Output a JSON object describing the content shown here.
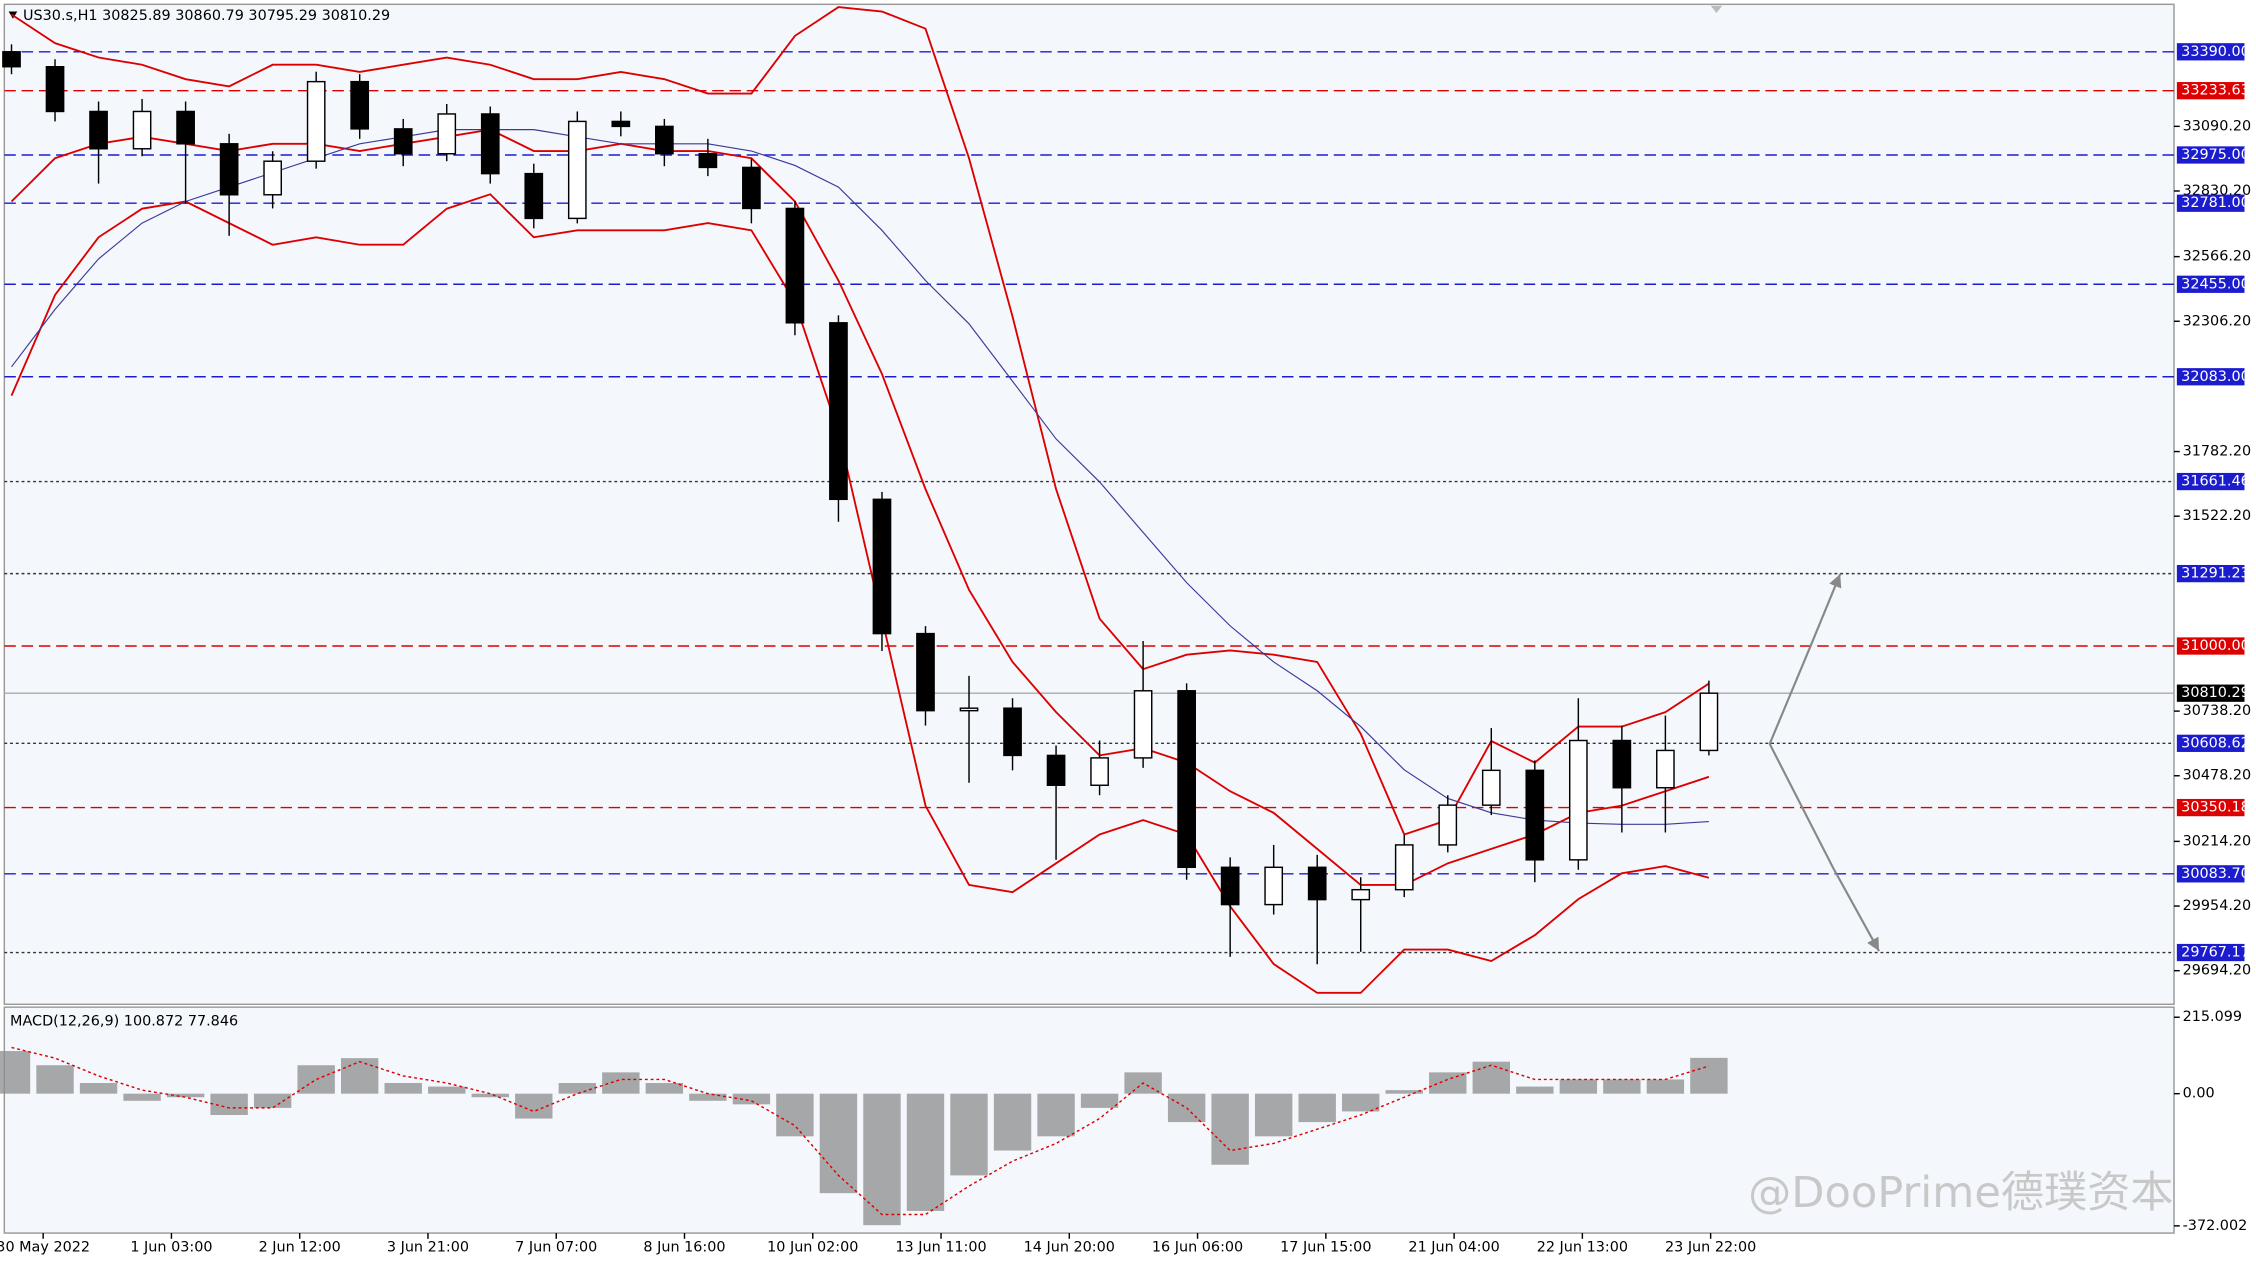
{
  "chart_data": [
    {
      "type": "candlestick",
      "title": "US30.s,H1  30825.89 30860.79 30795.29 30810.29",
      "watermark": "@DooPrime德璞资本",
      "ylim": [
        29559,
        33581
      ],
      "yticks": [
        {
          "value": 33090.2,
          "label": "33090.20"
        },
        {
          "value": 32830.2,
          "label": "32830.20"
        },
        {
          "value": 32566.2,
          "label": "32566.20"
        },
        {
          "value": 32306.2,
          "label": "32306.20"
        },
        {
          "value": 31782.2,
          "label": "31782.20"
        },
        {
          "value": 31522.2,
          "label": "31522.20"
        },
        {
          "value": 30738.2,
          "label": "30738.20"
        },
        {
          "value": 30478.2,
          "label": "30478.20"
        },
        {
          "value": 30214.2,
          "label": "30214.20"
        },
        {
          "value": 29954.2,
          "label": "29954.20"
        },
        {
          "value": 29694.2,
          "label": "29694.20"
        }
      ],
      "open": [
        33390,
        33330,
        33150,
        33000,
        33150,
        33020,
        32815,
        32950,
        33270,
        33080,
        32980,
        33140,
        32900,
        32720,
        33110,
        33090,
        32980,
        32925,
        32760,
        32300,
        31590,
        31050,
        30740,
        30750,
        30560,
        30440,
        30550,
        30820,
        30110,
        29960,
        30110,
        29980,
        30020,
        30200,
        30360,
        30500,
        30140,
        30620,
        30430,
        30580
      ],
      "high": [
        33420,
        33360,
        33190,
        33200,
        33190,
        33060,
        32990,
        33310,
        33300,
        33120,
        33180,
        33170,
        32940,
        33150,
        33150,
        33120,
        33040,
        32960,
        32790,
        32330,
        31620,
        31080,
        30880,
        30790,
        30600,
        30620,
        31020,
        30850,
        30150,
        30200,
        30160,
        30070,
        30240,
        30400,
        30670,
        30540,
        30790,
        30680,
        30720,
        30860.79
      ],
      "low": [
        33300,
        33110,
        32860,
        32970,
        32780,
        32650,
        32760,
        32920,
        33040,
        32930,
        32950,
        32860,
        32680,
        32700,
        33050,
        32930,
        32890,
        32700,
        32250,
        31500,
        30980,
        30680,
        30450,
        30500,
        30140,
        30400,
        30510,
        30060,
        29750,
        29920,
        29720,
        29770,
        29990,
        30170,
        30320,
        30050,
        30100,
        30250,
        30250,
        30560
      ],
      "close": [
        33330,
        33150,
        33000,
        33150,
        33020,
        32815,
        32950,
        33270,
        33080,
        32980,
        33140,
        32900,
        32720,
        33110,
        33090,
        32980,
        32925,
        32760,
        32300,
        31590,
        31050,
        30740,
        30750,
        30560,
        30440,
        30550,
        30820,
        30110,
        29960,
        30110,
        29980,
        30020,
        30200,
        30360,
        30500,
        30140,
        30620,
        30430,
        30580,
        30810.29
      ],
      "series": [
        {
          "color": "#dd0000",
          "values": [
            33540,
            33425,
            33367,
            33338,
            33280,
            33251,
            33338,
            33338,
            33309,
            33338,
            33367,
            33338,
            33280,
            33280,
            33309,
            33280,
            33222,
            33222,
            33454,
            33570,
            33552,
            33483,
            32962,
            32325,
            31631,
            31110,
            30907,
            30965,
            30982,
            30965,
            30936,
            30647,
            30242,
            30300,
            30618,
            30531,
            30676,
            30676,
            30734,
            30849
          ]
        },
        {
          "color": "#dd0000",
          "values": [
            32788,
            32962,
            33020,
            33048,
            33020,
            32991,
            33020,
            33020,
            32991,
            33020,
            33048,
            33077,
            32991,
            32991,
            33020,
            32991,
            32991,
            32962,
            32788,
            32470,
            32094,
            31631,
            31226,
            30936,
            30734,
            30560,
            30589,
            30531,
            30416,
            30329,
            30184,
            30039,
            30039,
            30126,
            30184,
            30242,
            30329,
            30358,
            30416,
            30474
          ]
        },
        {
          "color": "#dd0000",
          "values": [
            32007,
            32412,
            32644,
            32759,
            32788,
            32701,
            32614,
            32644,
            32614,
            32614,
            32759,
            32817,
            32644,
            32672,
            32672,
            32672,
            32701,
            32672,
            32383,
            31862,
            31110,
            30358,
            30039,
            30010,
            30126,
            30242,
            30300,
            30242,
            29953,
            29721,
            29605,
            29605,
            29779,
            29779,
            29733,
            29837,
            29982,
            30086,
            30115,
            30068
          ]
        },
        {
          "color": "#3a3a9a",
          "values": [
            32123,
            32354,
            32557,
            32701,
            32788,
            32846,
            32904,
            32962,
            33020,
            33048,
            33077,
            33077,
            33077,
            33048,
            33020,
            33020,
            33020,
            32991,
            32933,
            32846,
            32672,
            32470,
            32296,
            32065,
            31833,
            31660,
            31457,
            31255,
            31081,
            30936,
            30820,
            30676,
            30502,
            30387,
            30329,
            30300,
            30288,
            30283,
            30283,
            30294
          ]
        }
      ],
      "levels": [
        {
          "value": 33390,
          "label": "33390.00",
          "color": "#1c1ccf",
          "style": "dashed"
        },
        {
          "value": 33233.63,
          "label": "33233.63",
          "color": "#dd0000",
          "style": "dashed"
        },
        {
          "value": 32975,
          "label": "32975.00",
          "color": "#1c1ccf",
          "style": "dashed"
        },
        {
          "value": 32781,
          "label": "32781.00",
          "color": "#1c1ccf",
          "style": "dashed"
        },
        {
          "value": 32455,
          "label": "32455.00",
          "color": "#1c1ccf",
          "style": "dashed"
        },
        {
          "value": 32083,
          "label": "32083.00",
          "color": "#1c1ccf",
          "style": "dashed"
        },
        {
          "value": 31661.46,
          "label": "31661.46",
          "color": "#1c1ccf",
          "style": "dotted"
        },
        {
          "value": 31291.23,
          "label": "31291.23",
          "color": "#1c1ccf",
          "style": "dotted"
        },
        {
          "value": 31000,
          "label": "31000.00",
          "color": "#dd0000",
          "style": "dashed"
        },
        {
          "value": 30810.29,
          "label": "30810.29",
          "color": "#000000",
          "style": "solid"
        },
        {
          "value": 30608.62,
          "label": "30608.62",
          "color": "#1c1ccf",
          "style": "dotted"
        },
        {
          "value": 30350.18,
          "label": "30350.18",
          "color": "#dd0000",
          "style": "dashed"
        },
        {
          "value": 30083.7,
          "label": "30083.70",
          "color": "#1c1ccf",
          "style": "dashed"
        },
        {
          "value": 29767.17,
          "label": "29767.17",
          "color": "#1c1ccf",
          "style": "dotted"
        }
      ]
    },
    {
      "type": "macd",
      "title": "MACD(12,26,9) 100.872 77.846",
      "ylim": [
        -372.002,
        215.099
      ],
      "yticks": [
        215.099,
        {
          "value": 0,
          "label": "0.00"
        },
        -372.002
      ],
      "values": [
        120,
        80,
        30,
        -20,
        -10,
        -60,
        -40,
        80,
        100,
        30,
        20,
        -10,
        -70,
        30,
        60,
        30,
        -20,
        -30,
        -120,
        -280,
        -370,
        -330,
        -230,
        -160,
        -120,
        -40,
        60,
        -80,
        -200,
        -120,
        -80,
        -50,
        10,
        60,
        90,
        20,
        40,
        40,
        40,
        100.872
      ],
      "color": "#8c8c8c",
      "signal": {
        "color": "#dd0000",
        "values": [
          130,
          100,
          50,
          10,
          -10,
          -40,
          -40,
          40,
          90,
          50,
          30,
          0,
          -50,
          0,
          40,
          40,
          0,
          -20,
          -90,
          -230,
          -340,
          -340,
          -260,
          -190,
          -140,
          -70,
          30,
          -40,
          -160,
          -140,
          -100,
          -60,
          -10,
          40,
          80,
          40,
          40,
          40,
          40,
          77.846
        ]
      },
      "time_labels": [
        "30 May 2022",
        "1 Jun 03:00",
        "2 Jun 12:00",
        "3 Jun 21:00",
        "7 Jun 07:00",
        "8 Jun 16:00",
        "10 Jun 02:00",
        "13 Jun 11:00",
        "14 Jun 20:00",
        "16 Jun 06:00",
        "17 Jun 15:00",
        "21 Jun 04:00",
        "22 Jun 13:00",
        "23 Jun 22:00"
      ]
    }
  ]
}
